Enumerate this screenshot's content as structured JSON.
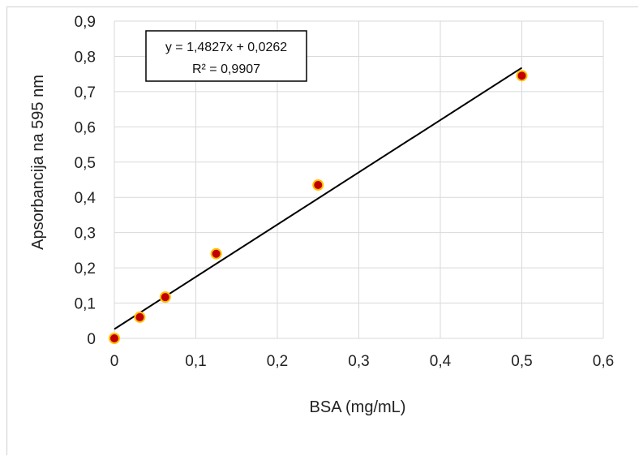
{
  "chart_data": {
    "type": "scatter",
    "xlabel": "BSA (mg/mL)",
    "ylabel": "Apsorbancija na 595 nm",
    "xlim": [
      0,
      0.6
    ],
    "ylim": [
      0,
      0.9
    ],
    "x_ticks": [
      "0",
      "0,1",
      "0,2",
      "0,3",
      "0,4",
      "0,5",
      "0,6"
    ],
    "y_ticks": [
      "0",
      "0,1",
      "0,2",
      "0,3",
      "0,4",
      "0,5",
      "0,6",
      "0,7",
      "0,8",
      "0,9"
    ],
    "grid": true,
    "series": [
      {
        "x": [
          0,
          0.03125,
          0.0625,
          0.125,
          0.25,
          0.5
        ],
        "y": [
          0,
          0.06,
          0.117,
          0.24,
          0.435,
          0.745
        ],
        "marker_color": "#c00000",
        "marker_edge": "#ffc000"
      }
    ],
    "trendline": {
      "slope": 1.4827,
      "intercept": 0.0262,
      "x_range": [
        0,
        0.5
      ],
      "color": "#000000",
      "equation": "y = 1,4827x + 0,0262",
      "r_squared": "R² = 0,9907"
    }
  }
}
